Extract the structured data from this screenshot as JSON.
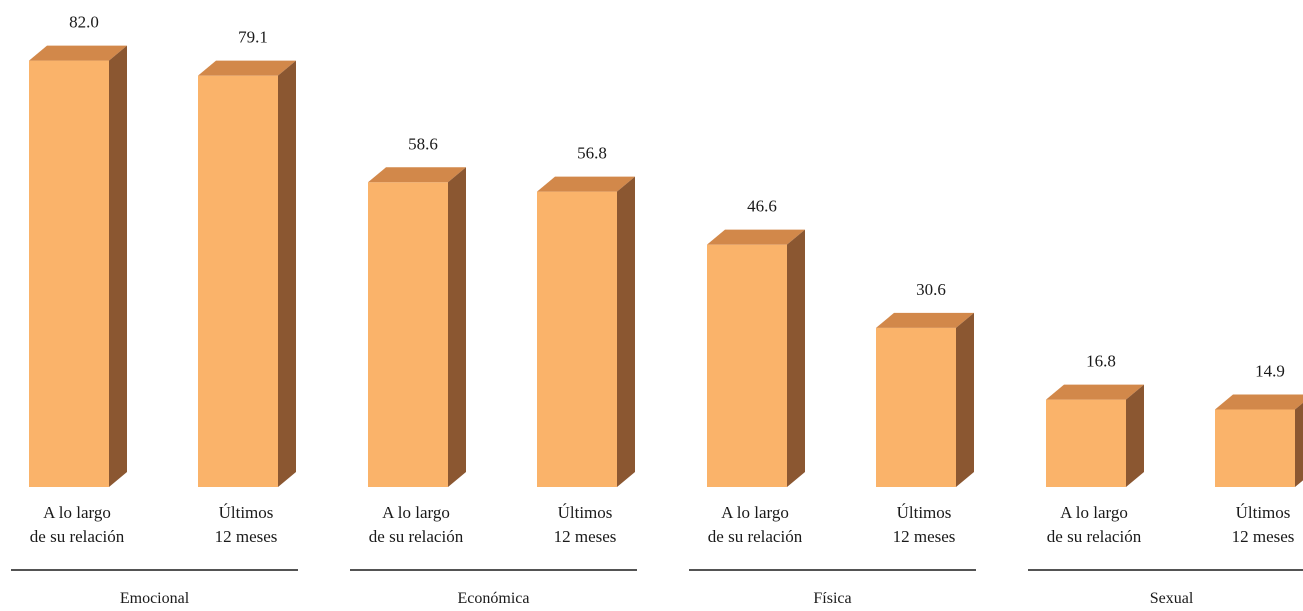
{
  "chart_data": {
    "type": "bar",
    "style": "3d",
    "colors": {
      "front": "#FAB36A",
      "top": "#D2884A",
      "side": "#8B5731"
    },
    "groups": [
      {
        "name": "Emocional",
        "bars": [
          {
            "label_lines": [
              "A lo largo",
              "de su relación"
            ],
            "value": 82.0,
            "value_label": "82.0"
          },
          {
            "label_lines": [
              "Últimos",
              "12 meses"
            ],
            "value": 79.1,
            "value_label": "79.1"
          }
        ]
      },
      {
        "name": "Económica",
        "bars": [
          {
            "label_lines": [
              "A lo largo",
              "de su relación"
            ],
            "value": 58.6,
            "value_label": "58.6"
          },
          {
            "label_lines": [
              "Últimos",
              "12 meses"
            ],
            "value": 56.8,
            "value_label": "56.8"
          }
        ]
      },
      {
        "name": "Física",
        "bars": [
          {
            "label_lines": [
              "A lo largo",
              "de su relación"
            ],
            "value": 46.6,
            "value_label": "46.6"
          },
          {
            "label_lines": [
              "Últimos",
              "12 meses"
            ],
            "value": 30.6,
            "value_label": "30.6"
          }
        ]
      },
      {
        "name": "Sexual",
        "bars": [
          {
            "label_lines": [
              "A lo largo",
              "de su relación"
            ],
            "value": 16.8,
            "value_label": "16.8"
          },
          {
            "label_lines": [
              "Últimos",
              "12 meses"
            ],
            "value": 14.9,
            "value_label": "14.9"
          }
        ]
      }
    ],
    "ylim": [
      0,
      82
    ],
    "grid": false,
    "legend": "none"
  }
}
